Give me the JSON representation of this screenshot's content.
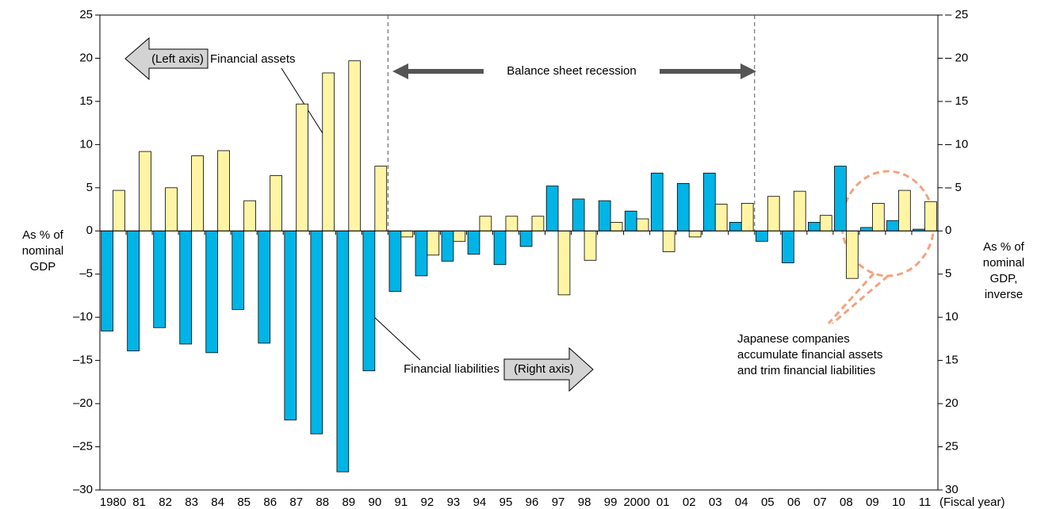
{
  "chart_data": {
    "type": "bar",
    "categories": [
      "1980",
      "81",
      "82",
      "83",
      "84",
      "85",
      "86",
      "87",
      "88",
      "89",
      "90",
      "91",
      "92",
      "93",
      "94",
      "95",
      "96",
      "97",
      "98",
      "99",
      "2000",
      "01",
      "02",
      "03",
      "04",
      "05",
      "06",
      "07",
      "08",
      "09",
      "10",
      "11"
    ],
    "series": [
      {
        "name": "Financial liabilities",
        "color": "#00b4e6",
        "axis": "y2",
        "values": [
          11.6,
          13.9,
          11.2,
          13.1,
          14.1,
          9.1,
          13.0,
          21.9,
          23.5,
          27.9,
          16.2,
          7.0,
          5.2,
          3.5,
          2.7,
          3.9,
          1.8,
          -5.2,
          -3.7,
          -3.5,
          -2.3,
          -6.7,
          -5.5,
          -6.7,
          -1.0,
          1.2,
          3.7,
          -1.0,
          -7.5,
          -0.4,
          -1.2,
          -0.2
        ]
      },
      {
        "name": "Financial assets",
        "color": "#fff5a5",
        "values": [
          4.7,
          9.2,
          5.0,
          8.7,
          9.3,
          3.5,
          6.4,
          14.7,
          18.3,
          19.7,
          7.5,
          -0.7,
          -2.8,
          -1.2,
          1.7,
          1.7,
          1.7,
          -7.4,
          -3.4,
          1.0,
          1.4,
          -2.4,
          -0.7,
          3.1,
          3.2,
          4.0,
          4.6,
          1.8,
          -5.5,
          3.2,
          4.7,
          3.4
        ]
      }
    ],
    "ylim": [
      -30,
      25
    ],
    "yticks": [
      {
        "value": -30,
        "label": "–30"
      },
      {
        "value": -25,
        "label": "–25"
      },
      {
        "value": -20,
        "label": "–20"
      },
      {
        "value": -15,
        "label": "–15"
      },
      {
        "value": -10,
        "label": "–10"
      },
      {
        "value": -5,
        "label": "–5"
      },
      0,
      5,
      10,
      15,
      20,
      25
    ],
    "y2lim": [
      30,
      -25
    ],
    "y2ticks": [
      30,
      25,
      20,
      15,
      10,
      5,
      0,
      {
        "value": -5,
        "label": "– 5"
      },
      {
        "value": -10,
        "label": "– 10"
      },
      {
        "value": -15,
        "label": "– 15"
      },
      {
        "value": -20,
        "label": "– 20"
      },
      {
        "value": -25,
        "label": "– 25"
      }
    ],
    "ylabel": [
      "As % of",
      "nominal",
      "GDP"
    ],
    "y2label": [
      "As % of",
      "nominal",
      "GDP,",
      "inverse"
    ],
    "xlabel": "(Fiscal year)",
    "annotations": {
      "left_axis": "(Left axis)",
      "right_axis": "(Right axis)",
      "recession": "Balance sheet recession",
      "callout": [
        "Japanese companies",
        "accumulate financial assets",
        "and trim financial liabilities"
      ]
    }
  }
}
